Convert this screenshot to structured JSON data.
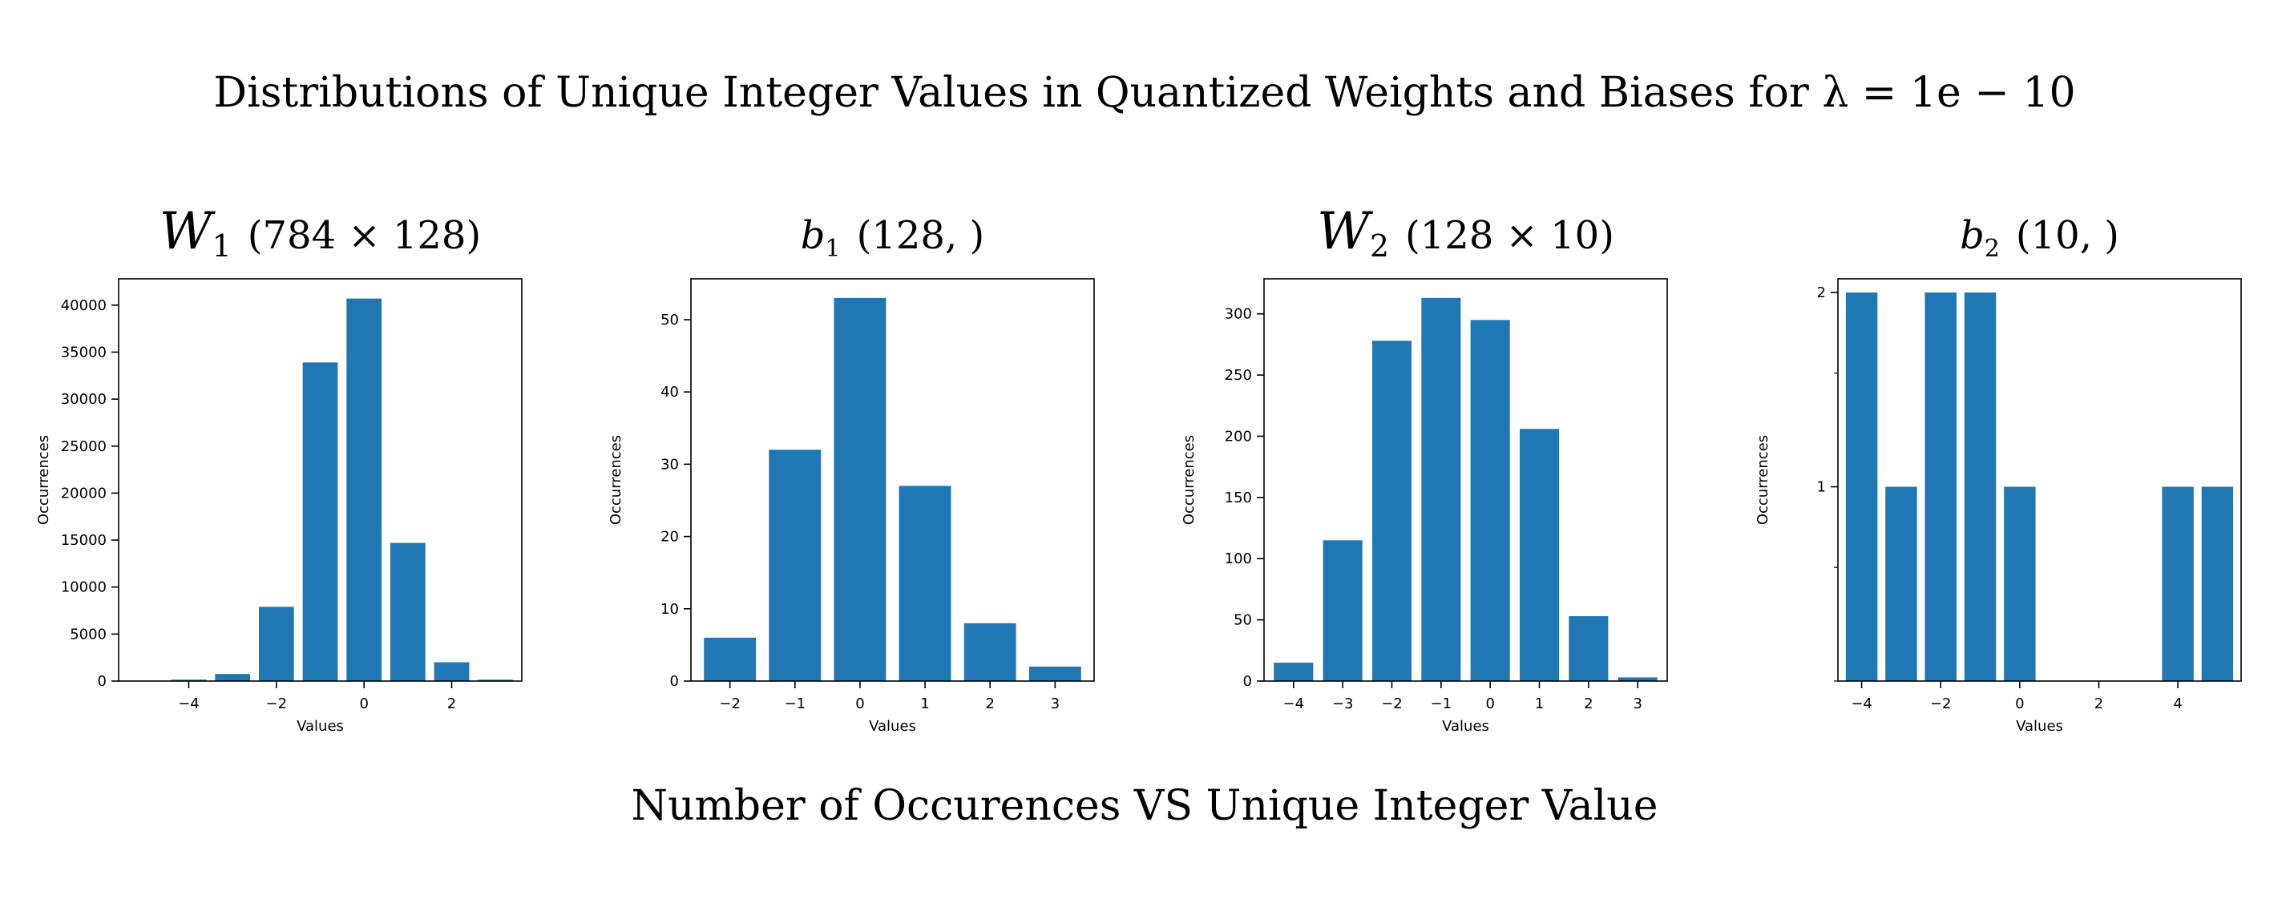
{
  "figure": {
    "title": "Distributions of Unique Integer Values in Quantized Weights and Biases for λ = 1e − 10",
    "footer": "Number of Occurences VS Unique Integer Value",
    "bar_color": "#1f77b4"
  },
  "chart_data": [
    {
      "type": "bar",
      "title_symbol": "W",
      "title_sub": "1",
      "title_shape": "(784 × 128)",
      "xlabel": "Values",
      "ylabel": "Occurrences",
      "x": [
        -5,
        -4,
        -3,
        -2,
        -1,
        0,
        1,
        2,
        3
      ],
      "values": [
        20,
        150,
        750,
        7900,
        33900,
        40700,
        14700,
        2000,
        150
      ],
      "xlim": [
        -5.6,
        3.6
      ],
      "ylim": [
        0,
        42800
      ],
      "xticks": [
        -4,
        -2,
        0,
        2
      ],
      "yticks": [
        0,
        5000,
        10000,
        15000,
        20000,
        25000,
        30000,
        35000,
        40000
      ],
      "yscale": "linear",
      "grid": false
    },
    {
      "type": "bar",
      "title_symbol": "b",
      "title_sub": "1",
      "title_shape": "(128, )",
      "xlabel": "Values",
      "ylabel": "Occurrences",
      "x": [
        -2,
        -1,
        0,
        1,
        2,
        3
      ],
      "values": [
        6,
        32,
        53,
        27,
        8,
        2
      ],
      "xlim": [
        -2.6,
        3.6
      ],
      "ylim": [
        0,
        55.65
      ],
      "xticks": [
        -2,
        -1,
        0,
        1,
        2,
        3
      ],
      "yticks": [
        0,
        10,
        20,
        30,
        40,
        50
      ],
      "yscale": "linear",
      "grid": false
    },
    {
      "type": "bar",
      "title_symbol": "W",
      "title_sub": "2",
      "title_shape": "(128 × 10)",
      "xlabel": "Values",
      "ylabel": "Occurrences",
      "x": [
        -4,
        -3,
        -2,
        -1,
        0,
        1,
        2,
        3
      ],
      "values": [
        15,
        115,
        278,
        313,
        295,
        206,
        53,
        3
      ],
      "xlim": [
        -4.6,
        3.6
      ],
      "ylim": [
        0,
        328.6
      ],
      "xticks": [
        -4,
        -3,
        -2,
        -1,
        0,
        1,
        2,
        3
      ],
      "yticks": [
        0,
        50,
        100,
        150,
        200,
        250,
        300
      ],
      "yscale": "linear",
      "grid": false
    },
    {
      "type": "bar",
      "title_symbol": "b",
      "title_sub": "2",
      "title_shape": "(10, )",
      "xlabel": "Values",
      "ylabel": "Occurrences",
      "x": [
        -4,
        -3,
        -2,
        -1,
        0,
        4,
        5
      ],
      "values": [
        2,
        1,
        2,
        2,
        1,
        1,
        1
      ],
      "xlim": [
        -4.6,
        5.6
      ],
      "ylim": [
        0.5,
        2.1
      ],
      "xticks": [
        -4,
        -2,
        0,
        2,
        4
      ],
      "yticks": [
        1,
        2
      ],
      "yminorticks": [
        0.5,
        0.75,
        1.5
      ],
      "yscale": "log",
      "grid": false
    }
  ]
}
